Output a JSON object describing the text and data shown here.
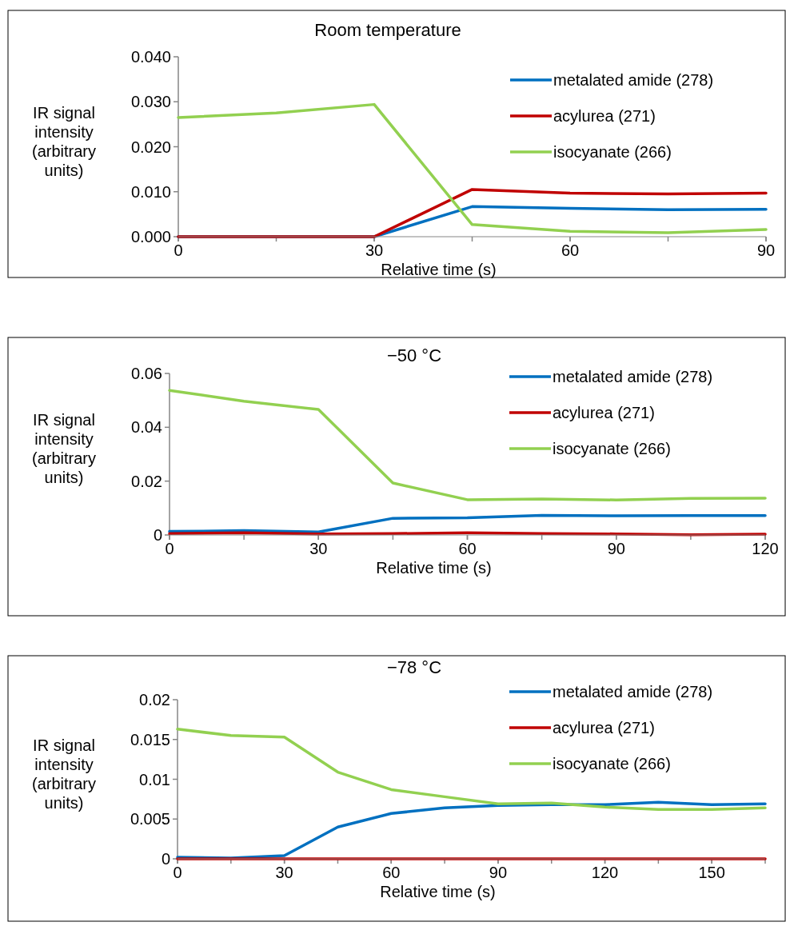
{
  "chart_data": [
    {
      "type": "line",
      "title": "Room temperature",
      "xlabel": "Relative time (s)",
      "ylabel": "IR signal\nintensity\n(arbitrary\nunits)",
      "x": [
        0,
        15,
        30,
        45,
        60,
        75,
        90
      ],
      "xlim": [
        0,
        90
      ],
      "xticks": [
        0,
        30,
        60,
        90
      ],
      "ylim": [
        0,
        0.04
      ],
      "yticks": [
        {
          "value": 0,
          "label": "0.000"
        },
        {
          "value": 0.01,
          "label": "0.010"
        },
        {
          "value": 0.02,
          "label": "0.020"
        },
        {
          "value": 0.03,
          "label": "0.030"
        },
        {
          "value": 0.04,
          "label": "0.040"
        }
      ],
      "legend": "top right",
      "grid": false,
      "marker": "none",
      "line_style": "solid",
      "series": [
        {
          "name": "metalated amide (278)",
          "color": "#0070c0",
          "values": [
            0,
            0,
            0,
            0.0067,
            0.0063,
            0.006,
            0.0061
          ]
        },
        {
          "name": "acylurea (271)",
          "color": "#c00000",
          "values": [
            0,
            0,
            0,
            0.0105,
            0.0097,
            0.0095,
            0.0097
          ]
        },
        {
          "name": "isocyanate (266)",
          "color": "#92d050",
          "values": [
            0.0265,
            0.0275,
            0.0294,
            0.0027,
            0.0012,
            0.0009,
            0.0016
          ]
        }
      ]
    },
    {
      "type": "line",
      "title": "−50 °C",
      "xlabel": "Relative time (s)",
      "ylabel": "IR signal\nintensity\n(arbitrary\nunits)",
      "x": [
        0,
        15,
        30,
        45,
        60,
        75,
        90,
        105,
        120
      ],
      "xlim": [
        0,
        120
      ],
      "xticks": [
        0,
        30,
        60,
        90,
        120
      ],
      "ylim": [
        0,
        0.06
      ],
      "yticks": [
        0,
        0.02,
        0.04,
        0.06
      ],
      "legend": "top right",
      "grid": false,
      "marker": "none",
      "line_style": "solid",
      "series": [
        {
          "name": "metalated amide (278)",
          "color": "#0070c0",
          "values": [
            0.0013,
            0.0016,
            0.0011,
            0.0062,
            0.0064,
            0.0073,
            0.0071,
            0.0072,
            0.0072
          ]
        },
        {
          "name": "acylurea (271)",
          "color": "#c00000",
          "values": [
            0.0005,
            0.0008,
            0.0004,
            0.0005,
            0.0008,
            0.0005,
            0.0004,
            0.0001,
            0.0003
          ]
        },
        {
          "name": "isocyanate (266)",
          "color": "#92d050",
          "values": [
            0.0537,
            0.0497,
            0.0466,
            0.0193,
            0.0131,
            0.0134,
            0.013,
            0.0136,
            0.0137
          ]
        }
      ]
    },
    {
      "type": "line",
      "title": "−78 °C",
      "xlabel": "Relative time (s)",
      "ylabel": "IR signal\nintensity\n(arbitrary\nunits)",
      "x": [
        0,
        15,
        30,
        45,
        60,
        75,
        90,
        105,
        120,
        135,
        150,
        165
      ],
      "xlim": [
        0,
        165
      ],
      "xticks": [
        0,
        30,
        60,
        90,
        120,
        150
      ],
      "ylim": [
        0,
        0.02
      ],
      "yticks": [
        0,
        0.005,
        0.01,
        0.015,
        0.02
      ],
      "legend": "top right",
      "grid": false,
      "marker": "none",
      "line_style": "solid",
      "series": [
        {
          "name": "metalated amide (278)",
          "color": "#0070c0",
          "values": [
            0.0002,
            0.0001,
            0.0004,
            0.004,
            0.0057,
            0.0064,
            0.0067,
            0.0068,
            0.0068,
            0.0071,
            0.0068,
            0.0069
          ]
        },
        {
          "name": "acylurea (271)",
          "color": "#c00000",
          "values": [
            0,
            0,
            0,
            0,
            0,
            0,
            0,
            0,
            0,
            0,
            0,
            0
          ]
        },
        {
          "name": "isocyanate (266)",
          "color": "#92d050",
          "values": [
            0.0163,
            0.0155,
            0.0153,
            0.0109,
            0.0087,
            0.0078,
            0.0069,
            0.007,
            0.0065,
            0.0062,
            0.0062,
            0.0064
          ]
        }
      ]
    }
  ]
}
